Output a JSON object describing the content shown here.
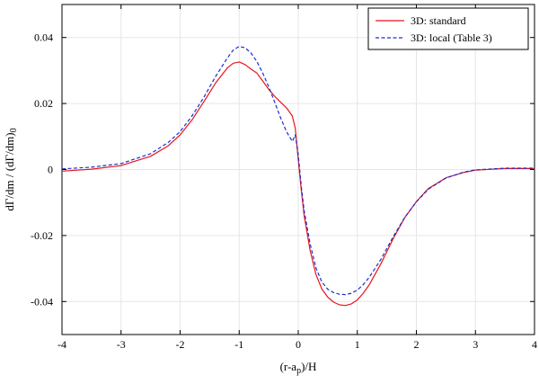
{
  "chart_data": {
    "type": "line",
    "title": "",
    "xlabel": "(r-a",
    "xlabel_sub": "p",
    "xlabel_tail": ")/H",
    "ylabel": "dΓ/dm / (dΓ/dm)",
    "ylabel_sub": "0",
    "xlim": [
      -4,
      4
    ],
    "ylim": [
      -0.05,
      0.05
    ],
    "x_ticks": [
      -4,
      -3,
      -2,
      -1,
      0,
      1,
      2,
      3,
      4
    ],
    "x_tick_labels": [
      "-4",
      "-3",
      "-2",
      "-1",
      "0",
      "1",
      "2",
      "3",
      "4"
    ],
    "y_ticks": [
      -0.04,
      -0.02,
      0,
      0.02,
      0.04
    ],
    "y_tick_labels": [
      "-0.04",
      "-0.02",
      "0",
      "0.02",
      "0.04"
    ],
    "grid": true,
    "legend_position": "top-right",
    "series": [
      {
        "name": "3D: standard",
        "color": "#e8141c",
        "dash": "solid",
        "x": [
          -4.0,
          -3.5,
          -3.0,
          -2.5,
          -2.2,
          -2.0,
          -1.8,
          -1.6,
          -1.4,
          -1.2,
          -1.1,
          -1.0,
          -0.9,
          -0.8,
          -0.7,
          -0.6,
          -0.5,
          -0.4,
          -0.3,
          -0.2,
          -0.1,
          -0.05,
          0.0,
          0.05,
          0.1,
          0.2,
          0.3,
          0.4,
          0.5,
          0.6,
          0.7,
          0.8,
          0.9,
          1.0,
          1.1,
          1.2,
          1.4,
          1.6,
          1.8,
          2.0,
          2.2,
          2.5,
          2.8,
          3.0,
          3.5,
          4.0
        ],
        "y": [
          -0.0005,
          0.0001,
          0.0012,
          0.004,
          0.0072,
          0.0105,
          0.015,
          0.0205,
          0.0262,
          0.0308,
          0.0322,
          0.0326,
          0.0318,
          0.0304,
          0.0292,
          0.0268,
          0.0243,
          0.0222,
          0.0204,
          0.0187,
          0.0162,
          0.0125,
          0.003,
          -0.006,
          -0.014,
          -0.0245,
          -0.0318,
          -0.0362,
          -0.0387,
          -0.0402,
          -0.041,
          -0.0412,
          -0.0407,
          -0.0395,
          -0.0375,
          -0.035,
          -0.0285,
          -0.0212,
          -0.0147,
          -0.0097,
          -0.0058,
          -0.0025,
          -0.0009,
          -0.0002,
          0.0003,
          0.0003
        ]
      },
      {
        "name": "3D: local (Table 3)",
        "color": "#1a2fcc",
        "dash": "dashed",
        "x": [
          -4.0,
          -3.5,
          -3.0,
          -2.5,
          -2.2,
          -2.0,
          -1.8,
          -1.6,
          -1.4,
          -1.2,
          -1.1,
          -1.0,
          -0.9,
          -0.8,
          -0.7,
          -0.6,
          -0.5,
          -0.4,
          -0.3,
          -0.2,
          -0.1,
          -0.05,
          0.0,
          0.05,
          0.1,
          0.2,
          0.3,
          0.4,
          0.5,
          0.6,
          0.7,
          0.8,
          0.9,
          1.0,
          1.1,
          1.2,
          1.4,
          1.6,
          1.8,
          2.0,
          2.2,
          2.5,
          2.8,
          3.0,
          3.5,
          4.0
        ],
        "y": [
          0.0002,
          0.0007,
          0.0018,
          0.0048,
          0.0082,
          0.0115,
          0.0162,
          0.0218,
          0.0282,
          0.0338,
          0.0362,
          0.0373,
          0.0369,
          0.0353,
          0.0327,
          0.0292,
          0.0251,
          0.0205,
          0.0157,
          0.0115,
          0.0085,
          0.0105,
          0.0045,
          -0.005,
          -0.0125,
          -0.0225,
          -0.0298,
          -0.0341,
          -0.0363,
          -0.0373,
          -0.0378,
          -0.0379,
          -0.0375,
          -0.0365,
          -0.0349,
          -0.0327,
          -0.0272,
          -0.0206,
          -0.0146,
          -0.0098,
          -0.006,
          -0.0026,
          -0.0008,
          -0.0001,
          0.0004,
          0.0004
        ]
      }
    ]
  }
}
